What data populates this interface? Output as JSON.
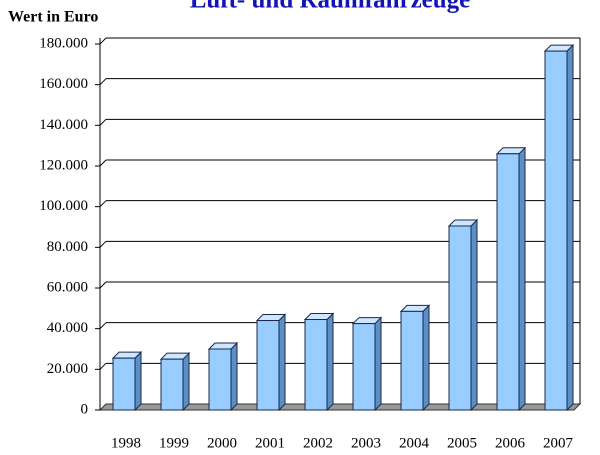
{
  "chart_data": {
    "type": "bar",
    "title": "Luft- und Raumfahrzeuge",
    "y_label": "Wert in Euro",
    "categories": [
      "1998",
      "1999",
      "2000",
      "2001",
      "2002",
      "2003",
      "2004",
      "2005",
      "2006",
      "2007"
    ],
    "values": [
      25500,
      25000,
      30000,
      44000,
      44500,
      42500,
      48500,
      90500,
      126000,
      176500
    ],
    "color": "#99ccff",
    "ylim": [
      0,
      180000
    ],
    "yticks": [
      0,
      {
        "value": 20000,
        "label": "20.000"
      },
      {
        "value": 40000,
        "label": "40.000"
      },
      {
        "value": 60000,
        "label": "60.000"
      },
      {
        "value": 80000,
        "label": "80.000"
      },
      {
        "value": 100000,
        "label": "100.000"
      },
      {
        "value": 120000,
        "label": "120.000"
      },
      {
        "value": 140000,
        "label": "140.000"
      },
      {
        "value": 160000,
        "label": "160.000"
      },
      {
        "value": 180000,
        "label": "180.000"
      }
    ],
    "grid": true
  }
}
